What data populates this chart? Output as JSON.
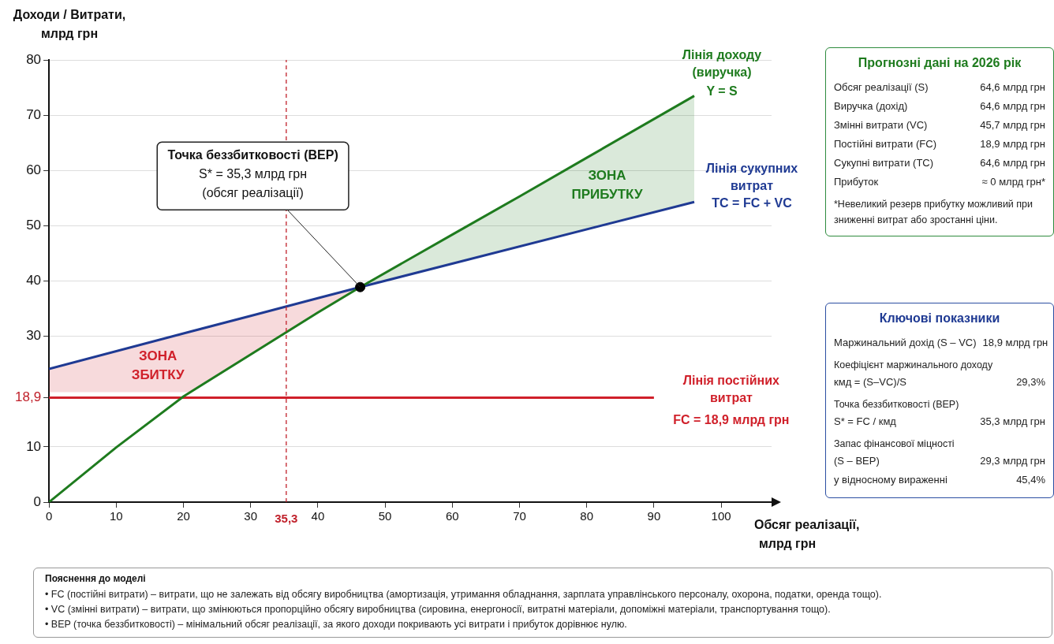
{
  "chart_data": [
    {
      "type": "line",
      "xlabel": "Обсяг реалізації, млрд грн",
      "ylabel": "Доходи / Витрати, млрд грн",
      "xlim": [
        0,
        107.5
      ],
      "ylim": [
        0,
        80
      ],
      "xticks": [
        0,
        10,
        20,
        30,
        40,
        50,
        60,
        70,
        80,
        90,
        100
      ],
      "yticks": [
        0,
        10,
        {
          "value": 18.9,
          "label": "18,9"
        },
        30,
        40,
        50,
        60,
        70,
        80
      ],
      "grid": "y",
      "legend": false,
      "marker": "none",
      "series": [
        {
          "name": "Лінія доходу (виручка)",
          "color": "#1e7b1e",
          "x": [
            0,
            10,
            20,
            30,
            40,
            46.3,
            60,
            70,
            80,
            96
          ],
          "values": [
            0,
            9.9,
            19.1,
            26.7,
            34.3,
            38.9,
            48.4,
            55.3,
            62.3,
            73.5
          ],
          "lower": [
            null,
            null,
            null,
            null,
            null,
            38.9,
            43.1,
            46.2,
            49.3,
            54.3
          ],
          "upper": [
            null,
            null,
            null,
            null,
            null,
            38.9,
            48.4,
            55.3,
            62.3,
            73.5
          ]
        },
        {
          "name": "Лінія сукупних витрат",
          "color": "#1f3a93",
          "x": [
            0,
            20.9,
            30,
            40,
            46.3,
            96
          ],
          "values": [
            24.1,
            30.8,
            33.7,
            36.9,
            38.9,
            54.3
          ],
          "lower": [
            19.9,
            19.9,
            26.7,
            34.3,
            38.9,
            null
          ],
          "upper": [
            24.1,
            30.8,
            33.7,
            36.9,
            38.9,
            null
          ]
        },
        {
          "name": "Лінія постійних витрат",
          "color": "#d0202a",
          "x": [
            0,
            90
          ],
          "values": [
            18.9,
            18.9
          ]
        },
        {
          "type": "scatter",
          "color": "#000000",
          "marker": "circle",
          "x": [
            46.3
          ],
          "values": [
            38.9
          ]
        }
      ],
      "ref_lines": [
        {
          "axis": "x",
          "value": 35.3,
          "label": "35,3",
          "color": "#c0202a",
          "line_style": "dashed"
        }
      ],
      "annotations": [
        {
          "text": "Точка беззбитковості (BEP)\nS* = 35,3 млрд грн\n(обсяг реалізації)",
          "x": 46.3,
          "y": 38.9
        },
        "Y = S",
        "TC = FC + VC",
        "FC = 18,9 млрд грн",
        "ЗОНА ЗБИТКУ",
        "ЗОНА ПРИБУТКУ"
      ]
    },
    {
      "type": "other",
      "title": "Прогнозні дані на 2026 рік",
      "annotations": [
        "Обсяг реалізації (S)\t64,6 млрд грн",
        "Виручка (дохід)\t64,6 млрд грн",
        "Змінні витрати (VC)\t45,7 млрд грн",
        "Постійні витрати (FC)\t18,9 млрд грн",
        "Сукупні витрати (TC)\t64,6 млрд грн",
        "Прибуток\t≈ 0 млрд грн*",
        "*Невеликий резерв прибутку можливий при зниженні витрат або зростанні ціни."
      ]
    },
    {
      "type": "other",
      "title": "Ключові показники",
      "annotations": [
        "Маржинальний дохід (S – VC)\t18,9 млрд грн",
        "Коефіцієнт маржинального доходу",
        "кмд = (S–VC)/S\t29,3%",
        "Точка беззбитковості (BEP)",
        "S* = FC / кмд\t35,3 млрд грн",
        "Запас фінансової міцності",
        "(S – BEP)\t29,3 млрд грн",
        "у відносному вираженні\t45,4%"
      ]
    },
    {
      "type": "other",
      "title": "Пояснення до моделі",
      "annotations": [
        "• FC  (постійні витрати) – витрати, що не залежать від обсягу виробництва (амортизація, утримання обладнання, зарплата управлінського персоналу, охорона, податки, оренда тощо).",
        "• VC  (змінні витрати) – витрати, що змінюються пропорційно обсягу виробництва (сировина, енергоносії, витратні матеріали, допоміжні матеріали, транспортування тощо).",
        "• BEP (точка беззбитковості) – мінімальний обсяг реалізації, за якого доходи покривають усі витрати і прибуток дорівнює нулю."
      ]
    }
  ]
}
